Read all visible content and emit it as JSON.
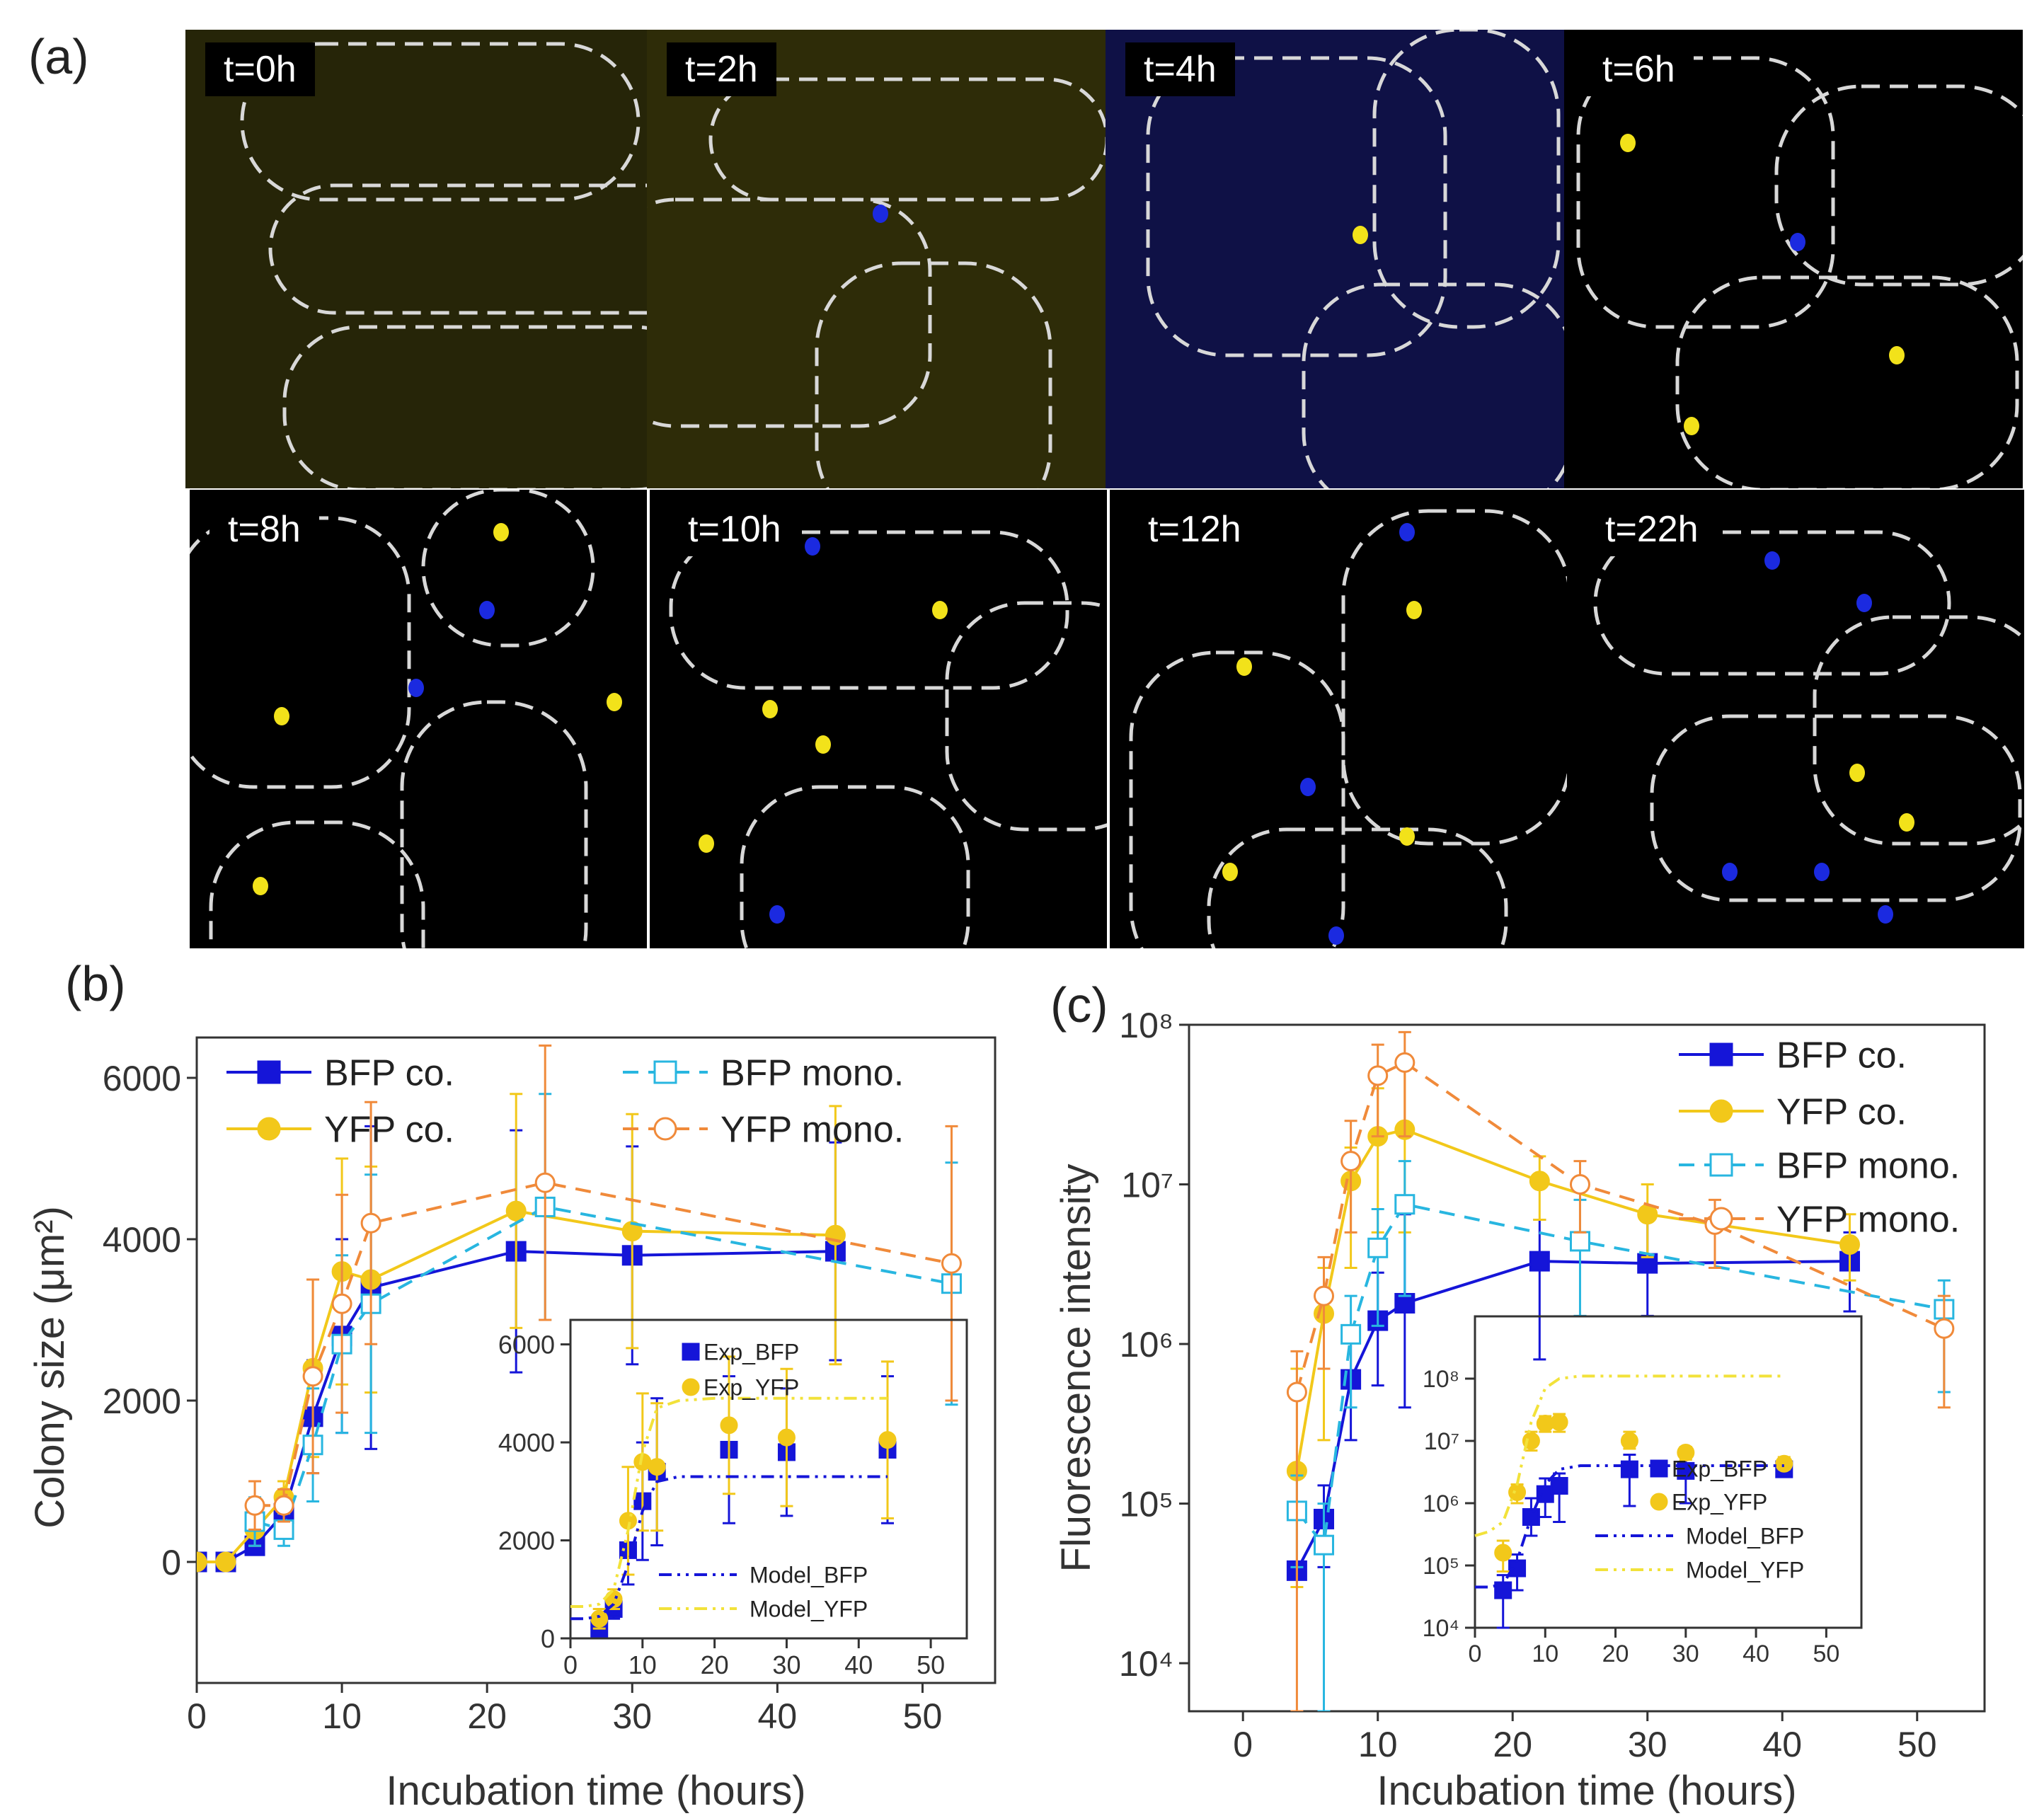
{
  "panel_labels": {
    "a": "(a)",
    "b": "(b)",
    "c": "(c)"
  },
  "micrographs": [
    {
      "label": "t=0h",
      "bg": "#262508",
      "dots": []
    },
    {
      "label": "t=2h",
      "bg": "#2e2c08",
      "dots": []
    },
    {
      "label": "t=4h",
      "bg": "#0f1146",
      "dots": []
    },
    {
      "label": "t=6h",
      "bg": "#000000",
      "dots": []
    },
    {
      "label": "t=8h",
      "bg": "#000000",
      "dots": []
    },
    {
      "label": "t=10h",
      "bg": "#000000",
      "dots": []
    },
    {
      "label": "t=12h",
      "bg": "#000000",
      "dots": []
    },
    {
      "label": "t=22h",
      "bg": "#000000",
      "dots": []
    }
  ],
  "colors": {
    "bfp_co": "#1515d8",
    "yfp_co": "#f2c81a",
    "bfp_mono": "#28b6e0",
    "yfp_mono": "#f08a3a",
    "bfp_model": "#1515d8",
    "yfp_model": "#f2e23a"
  },
  "chart_data": [
    {
      "type": "line",
      "panel": "(b)",
      "xlabel": "Incubation time (hours)",
      "ylabel": "Colony size (μm²)",
      "xlim": [
        0,
        55
      ],
      "ylim": [
        -1500,
        6500
      ],
      "xticks": [
        "0",
        "10",
        "20",
        "30",
        "40",
        "50"
      ],
      "yticks": [
        "0",
        "2000",
        "4000",
        "6000"
      ],
      "legend_position": "top",
      "series": [
        {
          "name": "BFP co.",
          "style": "bfp_co",
          "x": [
            0,
            2,
            4,
            6,
            8,
            10,
            12,
            22,
            30,
            44
          ],
          "y": [
            0,
            0,
            200,
            600,
            1800,
            2800,
            3400,
            3850,
            3800,
            3850
          ],
          "err": [
            0,
            0,
            100,
            200,
            700,
            1200,
            2000,
            1500,
            1350,
            1350
          ]
        },
        {
          "name": "YFP co.",
          "style": "yfp_co",
          "x": [
            0,
            2,
            4,
            6,
            8,
            10,
            12,
            22,
            30,
            44
          ],
          "y": [
            0,
            0,
            400,
            800,
            2400,
            3600,
            3500,
            4350,
            4100,
            4050
          ],
          "err": [
            0,
            0,
            200,
            200,
            1100,
            1400,
            1400,
            1450,
            1450,
            1600
          ]
        },
        {
          "name": "BFP mono.",
          "style": "bfp_mono",
          "x": [
            4,
            6,
            8,
            10,
            12,
            24,
            52
          ],
          "y": [
            500,
            400,
            1450,
            2700,
            3200,
            4400,
            3450
          ],
          "err": [
            300,
            200,
            700,
            1100,
            1600,
            1400,
            1500
          ]
        },
        {
          "name": "YFP mono.",
          "style": "yfp_mono",
          "x": [
            4,
            6,
            8,
            10,
            12,
            24,
            52
          ],
          "y": [
            700,
            700,
            2300,
            3200,
            4200,
            4700,
            3700
          ],
          "err": [
            300,
            200,
            1200,
            1350,
            1500,
            1700,
            1700
          ]
        }
      ],
      "inset": {
        "xlim": [
          0,
          55
        ],
        "ylim": [
          0,
          6500
        ],
        "xticks": [
          "0",
          "10",
          "20",
          "30",
          "40",
          "50"
        ],
        "yticks": [
          "0",
          "2000",
          "4000",
          "6000"
        ],
        "series": [
          {
            "name": "Exp_BFP",
            "style": "bfp_co",
            "x": [
              4,
              6,
              8,
              10,
              12,
              22,
              30,
              44
            ],
            "y": [
              200,
              600,
              1800,
              2800,
              3400,
              3850,
              3800,
              3850
            ],
            "err": [
              100,
              200,
              700,
              1200,
              1500,
              1500,
              1300,
              1500
            ]
          },
          {
            "name": "Exp_YFP",
            "style": "yfp_co",
            "x": [
              4,
              6,
              8,
              10,
              12,
              22,
              30,
              44
            ],
            "y": [
              400,
              800,
              2400,
              3600,
              3500,
              4350,
              4100,
              4050
            ],
            "err": [
              200,
              200,
              1100,
              1400,
              1300,
              1400,
              1400,
              1600
            ]
          },
          {
            "name": "Model_BFP",
            "style": "bfp_model",
            "x": [
              0,
              2,
              4,
              6,
              8,
              10,
              12,
              15,
              20,
              44
            ],
            "y": [
              400,
              400,
              450,
              700,
              1500,
              2600,
              3200,
              3300,
              3300,
              3300
            ]
          },
          {
            "name": "Model_YFP",
            "style": "yfp_model",
            "x": [
              0,
              2,
              4,
              6,
              8,
              10,
              12,
              15,
              20,
              44
            ],
            "y": [
              650,
              650,
              700,
              1000,
              2200,
              3800,
              4700,
              4850,
              4900,
              4900
            ]
          }
        ]
      }
    },
    {
      "type": "line",
      "panel": "(c)",
      "xlabel": "Incubation time (hours)",
      "ylabel": "Fluorescence intensity",
      "xscale": "linear",
      "yscale": "log",
      "xlim": [
        -4,
        55
      ],
      "ylim": [
        5000,
        100000000
      ],
      "xticks": [
        "0",
        "10",
        "20",
        "30",
        "40",
        "50"
      ],
      "yticks": [
        "10⁴",
        "10⁵",
        "10⁶",
        "10⁷",
        "10⁸"
      ],
      "legend_position": "top-right",
      "series": [
        {
          "name": "BFP co.",
          "style": "bfp_co",
          "x": [
            4,
            6,
            8,
            10,
            12,
            22,
            30,
            45
          ],
          "y": [
            38000,
            80000,
            600000,
            1400000,
            1800000,
            3300000,
            3200000,
            3300000
          ],
          "lo": [
            38000,
            40000,
            250000,
            550000,
            400000,
            800000,
            1500000,
            1600000
          ],
          "hi": [
            38000,
            130000,
            1300000,
            2800000,
            6500000,
            6000000,
            6000000,
            5000000
          ]
        },
        {
          "name": "YFP co.",
          "style": "yfp_co",
          "x": [
            4,
            6,
            8,
            10,
            12,
            22,
            30,
            45
          ],
          "y": [
            160000,
            1550000,
            10500000,
            20000000,
            22000000,
            10500000,
            6500000,
            4200000
          ],
          "lo": [
            30000,
            250000,
            3000000,
            5000000,
            5000000,
            6000000,
            3500000,
            2500000
          ],
          "hi": [
            700000,
            3000000,
            17000000,
            40000000,
            60000000,
            15000000,
            10000000,
            6500000
          ]
        },
        {
          "name": "BFP mono.",
          "style": "bfp_mono",
          "x": [
            4,
            6,
            8,
            10,
            12,
            25,
            52
          ],
          "y": [
            90000,
            55000,
            1150000,
            4000000,
            7500000,
            4400000,
            1650000
          ],
          "lo": [
            40000,
            5000,
            400000,
            1300000,
            2000000,
            1500000,
            500000
          ],
          "hi": [
            150000,
            100000,
            2000000,
            7000000,
            14000000,
            8000000,
            2500000
          ]
        },
        {
          "name": "YFP mono.",
          "style": "yfp_mono",
          "x": [
            4,
            6,
            8,
            10,
            12,
            25,
            35,
            52
          ],
          "y": [
            500000,
            2000000,
            14000000,
            48000000,
            58000000,
            10000000,
            5600000,
            1250000
          ],
          "lo": [
            5000,
            700000,
            5000000,
            20000000,
            20000000,
            5000000,
            3000000,
            400000
          ],
          "hi": [
            900000,
            3500000,
            25000000,
            75000000,
            90000000,
            14000000,
            8000000,
            2000000
          ]
        }
      ],
      "inset": {
        "xlim": [
          0,
          55
        ],
        "ylim": [
          10000,
          1000000000
        ],
        "yscale": "log",
        "xticks": [
          "0",
          "10",
          "20",
          "30",
          "40",
          "50"
        ],
        "yticks": [
          "10⁴",
          "10⁵",
          "10⁶",
          "10⁷",
          "10⁸"
        ],
        "series": [
          {
            "name": "Exp_BFP",
            "style": "bfp_co",
            "x": [
              4,
              6,
              8,
              10,
              12,
              22,
              30,
              44
            ],
            "y": [
              40000,
              90000,
              600000,
              1400000,
              1900000,
              3500000,
              3300000,
              3500000
            ],
            "lo": [
              10000,
              40000,
              300000,
              600000,
              500000,
              900000,
              1000000,
              3000000
            ],
            "hi": [
              70000,
              150000,
              1200000,
              2500000,
              3000000,
              6000000,
              6000000,
              4500000
            ]
          },
          {
            "name": "Exp_YFP",
            "style": "yfp_co",
            "x": [
              4,
              6,
              8,
              10,
              12,
              22,
              30,
              44
            ],
            "y": [
              160000,
              1500000,
              10000000,
              19000000,
              20000000,
              10000000,
              6500000,
              4300000
            ],
            "lo": [
              80000,
              1000000,
              7000000,
              14000000,
              14000000,
              7500000,
              5000000,
              3500000
            ],
            "hi": [
              250000,
              2000000,
              14000000,
              25000000,
              27000000,
              14000000,
              8000000,
              5500000
            ]
          },
          {
            "name": "Model_BFP",
            "style": "bfp_model",
            "x": [
              0,
              2,
              4,
              6,
              8,
              10,
              12,
              15,
              44
            ],
            "y": [
              45000,
              45000,
              50000,
              120000,
              600000,
              2000000,
              3500000,
              4000000,
              4000000
            ]
          },
          {
            "name": "Model_YFP",
            "style": "yfp_model",
            "x": [
              0,
              2,
              4,
              6,
              8,
              10,
              12,
              15,
              44
            ],
            "y": [
              300000,
              350000,
              500000,
              2000000,
              20000000,
              70000000,
              100000000,
              110000000,
              110000000
            ]
          }
        ]
      }
    }
  ]
}
